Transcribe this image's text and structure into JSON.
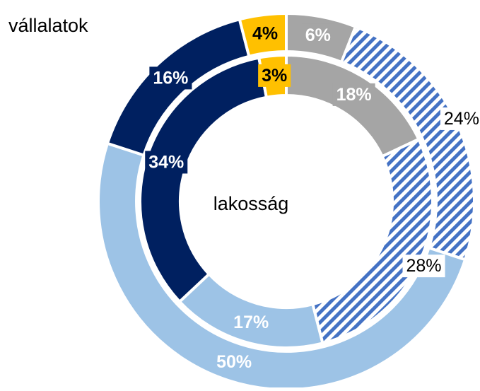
{
  "chart_data": {
    "type": "donut",
    "colors": [
      "#a5a5a5",
      "#4472c4",
      "#9dc3e6",
      "#002060",
      "#ffc000"
    ],
    "hatched": [
      false,
      true,
      false,
      false,
      false
    ],
    "label_colors": [
      "#ffffff",
      "#000000",
      "#ffffff",
      "#ffffff",
      "#000000"
    ],
    "series": [
      {
        "name": "vállalatok",
        "values": [
          6,
          24,
          50,
          16,
          4
        ],
        "value_labels": [
          "6%",
          "24%",
          "50%",
          "16%",
          "4%"
        ]
      },
      {
        "name": "lakosság",
        "values": [
          18,
          28,
          17,
          34,
          3
        ],
        "value_labels": [
          "18%",
          "28%",
          "17%",
          "34%",
          "3%"
        ]
      }
    ]
  }
}
